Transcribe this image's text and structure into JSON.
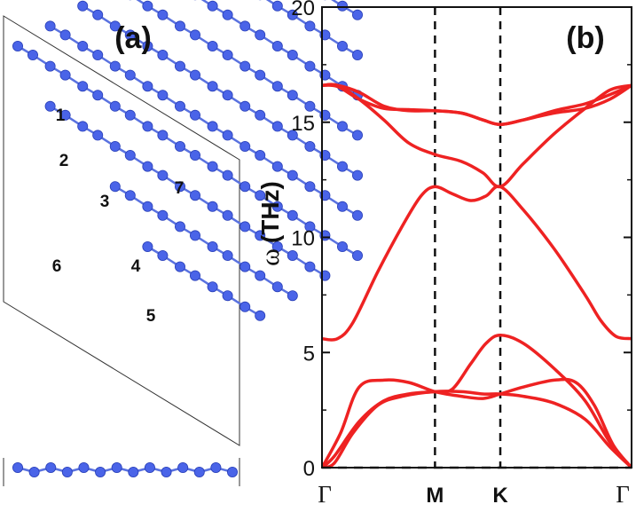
{
  "panel_a": {
    "label": "(a)",
    "site_labels": [
      "1",
      "2",
      "3",
      "4",
      "5",
      "6",
      "7"
    ],
    "atom_color": "#4a64e8",
    "bond_color": "#5a72e0"
  },
  "chart_data": {
    "type": "line",
    "panel_label": "(b)",
    "ylabel_symbol": "ω",
    "ylabel_unit": "(THz)",
    "ylim": [
      0,
      20
    ],
    "yticks": [
      0,
      5,
      10,
      15,
      20
    ],
    "xlim": [
      0,
      1
    ],
    "xtick_positions": [
      0,
      0.365,
      0.576,
      1
    ],
    "xtick_labels": [
      "Γ",
      "M",
      "K",
      "Γ"
    ],
    "vlines_at": [
      0.365,
      0.576
    ],
    "grid": false,
    "legend": "none",
    "color": "#ee2222",
    "series": [
      {
        "x": [
          0,
          0.04,
          0.12,
          0.2,
          0.28,
          0.365,
          0.42,
          0.48,
          0.53,
          0.576,
          0.65,
          0.75,
          0.85,
          0.93,
          1
        ],
        "y": [
          0,
          0.5,
          2.0,
          2.9,
          3.2,
          3.3,
          3.4,
          4.5,
          5.4,
          5.75,
          5.4,
          4.3,
          2.9,
          1.1,
          0
        ]
      },
      {
        "x": [
          0,
          0.04,
          0.1,
          0.18,
          0.26,
          0.365,
          0.45,
          0.52,
          0.576,
          0.65,
          0.75,
          0.85,
          0.93,
          1
        ],
        "y": [
          0,
          0.2,
          1.5,
          2.7,
          3.1,
          3.3,
          3.3,
          3.2,
          3.2,
          3.1,
          2.8,
          2.1,
          0.9,
          0
        ]
      },
      {
        "x": [
          0,
          0.06,
          0.12,
          0.2,
          0.28,
          0.365,
          0.45,
          0.52,
          0.576,
          0.65,
          0.75,
          0.82,
          0.88,
          0.94,
          1
        ],
        "y": [
          0,
          1.5,
          3.5,
          3.8,
          3.7,
          3.3,
          3.1,
          3.0,
          3.2,
          3.5,
          3.8,
          3.7,
          2.7,
          1.0,
          0
        ]
      },
      {
        "x": [
          0,
          0.05,
          0.1,
          0.18,
          0.26,
          0.32,
          0.365,
          0.42,
          0.48,
          0.53,
          0.576,
          0.65,
          0.75,
          0.85,
          0.9,
          0.95,
          1
        ],
        "y": [
          5.6,
          5.6,
          6.3,
          8.5,
          10.5,
          11.8,
          12.2,
          11.9,
          11.6,
          11.8,
          12.2,
          11.2,
          9.5,
          7.5,
          6.4,
          5.7,
          5.6
        ]
      },
      {
        "x": [
          0,
          0.05,
          0.12,
          0.2,
          0.28,
          0.365,
          0.45,
          0.52,
          0.576,
          0.65,
          0.75,
          0.85,
          0.93,
          1
        ],
        "y": [
          16.6,
          16.6,
          16.0,
          15.1,
          14.1,
          13.6,
          13.3,
          12.8,
          12.2,
          13.2,
          14.5,
          15.6,
          16.4,
          16.6
        ]
      },
      {
        "x": [
          0,
          0.05,
          0.12,
          0.2,
          0.28,
          0.365,
          0.45,
          0.52,
          0.576,
          0.65,
          0.75,
          0.85,
          0.93,
          1
        ],
        "y": [
          16.6,
          16.55,
          16.0,
          15.6,
          15.55,
          15.5,
          15.4,
          15.1,
          14.9,
          15.1,
          15.5,
          15.8,
          16.2,
          16.6
        ]
      },
      {
        "x": [
          0,
          0.05,
          0.12,
          0.2,
          0.28,
          0.365,
          0.45,
          0.52,
          0.576,
          0.65,
          0.75,
          0.85,
          0.93,
          1
        ],
        "y": [
          16.6,
          16.6,
          16.3,
          15.7,
          15.5,
          15.5,
          15.4,
          15.1,
          14.9,
          15.1,
          15.4,
          15.6,
          16.0,
          16.6
        ]
      }
    ]
  }
}
